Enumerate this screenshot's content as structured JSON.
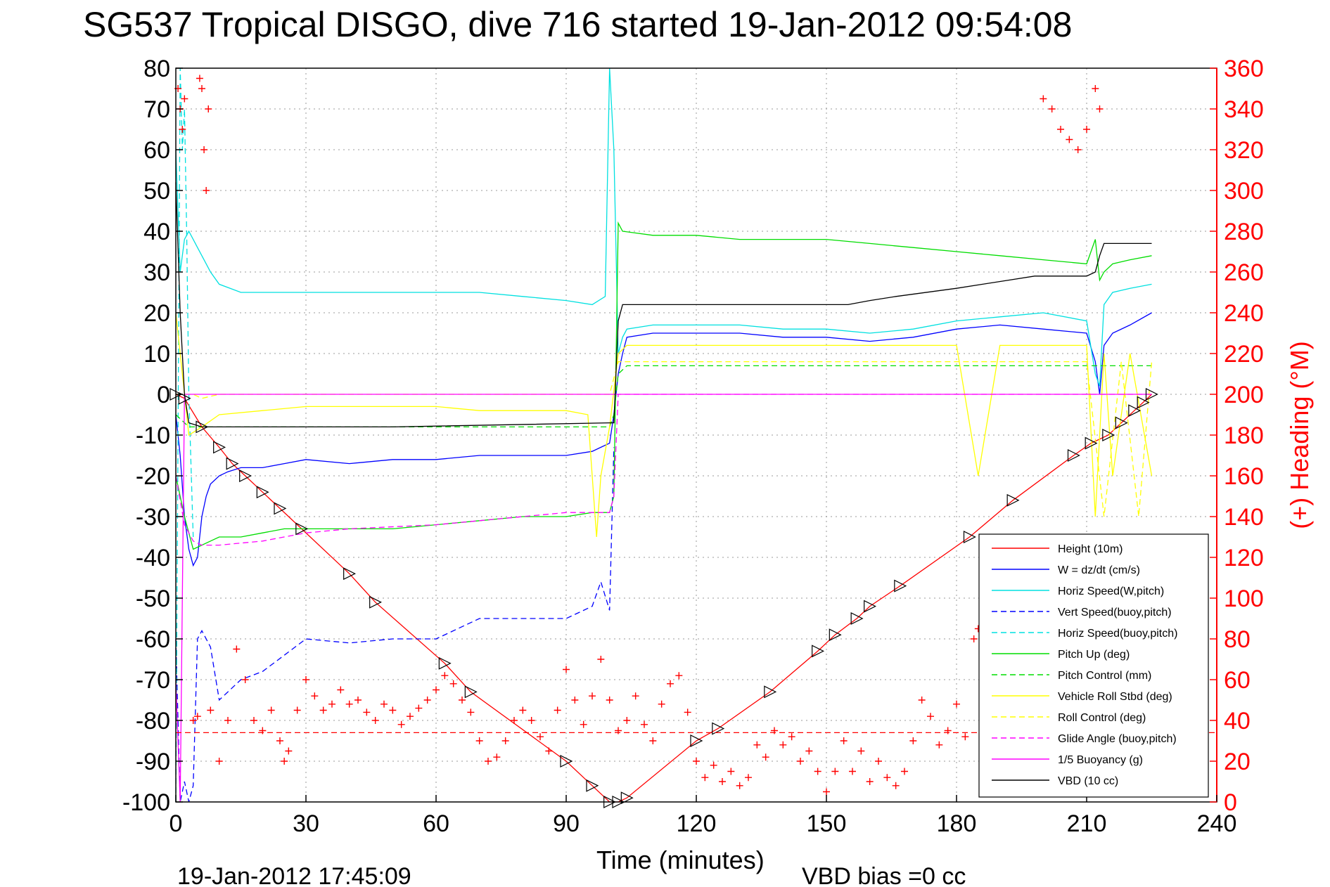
{
  "title": "SG537 Tropical DISGO, dive 716 started 19-Jan-2012 09:54:08",
  "footer": {
    "timestamp": "19-Jan-2012 17:45:09",
    "vbd_bias": "VBD bias =0 cc"
  },
  "chart_data": {
    "type": "line",
    "xlabel": "Time (minutes)",
    "ylabel": "",
    "y2label": "(+) Heading (°M)",
    "xlim": [
      0,
      240
    ],
    "ylim": [
      -100,
      80
    ],
    "y2lim": [
      0,
      360
    ],
    "xticks": [
      0,
      30,
      60,
      90,
      120,
      150,
      180,
      210,
      240
    ],
    "yticks": [
      80,
      70,
      60,
      50,
      40,
      30,
      20,
      10,
      0,
      -10,
      -20,
      -30,
      -40,
      -50,
      -60,
      -70,
      -80,
      -90,
      -100
    ],
    "y2ticks": [
      360,
      340,
      320,
      300,
      280,
      260,
      240,
      220,
      200,
      180,
      160,
      140,
      120,
      100,
      80,
      60,
      40,
      20,
      0
    ],
    "grid": true,
    "legend_position": "bottom-right",
    "series": [
      {
        "name": "Height (10m)",
        "color": "#ff0000",
        "dash": "solid",
        "x": [
          0,
          2,
          6,
          10,
          13,
          16,
          20,
          24,
          29,
          40,
          46,
          62,
          68,
          90,
          96,
          100,
          102,
          104,
          120,
          125,
          137,
          148,
          152,
          157,
          160,
          167,
          183,
          193,
          207,
          211,
          215,
          218,
          221,
          223,
          225
        ],
        "y": [
          0,
          -1,
          -8,
          -13,
          -17,
          -20,
          -24,
          -28,
          -33,
          -44,
          -51,
          -66,
          -73,
          -90,
          -96,
          -100,
          -100,
          -99,
          -85,
          -82,
          -73,
          -63,
          -59,
          -55,
          -52,
          -47,
          -35,
          -26,
          -15,
          -12,
          -10,
          -7,
          -4,
          -2,
          0
        ]
      },
      {
        "name": "W = dz/dt (cm/s)",
        "color": "#0000ff",
        "dash": "solid",
        "x": [
          0,
          1,
          2,
          3,
          4,
          5,
          6,
          7,
          8,
          10,
          12,
          15,
          20,
          25,
          30,
          40,
          50,
          60,
          70,
          80,
          90,
          96,
          98,
          100,
          101,
          102,
          103,
          104,
          110,
          120,
          130,
          140,
          150,
          160,
          170,
          180,
          190,
          200,
          210,
          212,
          213,
          214,
          216,
          220,
          225
        ],
        "y": [
          -5,
          -15,
          -30,
          -38,
          -42,
          -40,
          -30,
          -25,
          -22,
          -20,
          -19,
          -18,
          -18,
          -17,
          -16,
          -17,
          -16,
          -16,
          -15,
          -15,
          -15,
          -14,
          -13,
          -12,
          -5,
          5,
          10,
          14,
          15,
          15,
          15,
          14,
          14,
          13,
          14,
          16,
          17,
          16,
          15,
          8,
          0,
          12,
          15,
          17,
          20
        ]
      },
      {
        "name": "Horiz Speed(W,pitch)",
        "color": "#00e0e0",
        "dash": "solid",
        "x": [
          0,
          1,
          2,
          3,
          4,
          5,
          6,
          8,
          10,
          15,
          20,
          30,
          40,
          50,
          60,
          70,
          80,
          90,
          96,
          99,
          100,
          101,
          102,
          103,
          104,
          110,
          120,
          130,
          140,
          150,
          160,
          170,
          180,
          190,
          200,
          210,
          212,
          213,
          214,
          216,
          220,
          225
        ],
        "y": [
          60,
          30,
          38,
          40,
          38,
          36,
          34,
          30,
          27,
          25,
          25,
          25,
          25,
          25,
          25,
          25,
          24,
          23,
          22,
          24,
          80,
          60,
          10,
          14,
          16,
          17,
          17,
          17,
          16,
          16,
          15,
          16,
          18,
          19,
          20,
          18,
          5,
          2,
          22,
          25,
          26,
          27
        ]
      },
      {
        "name": "Vert Speed(buoy,pitch)",
        "color": "#0000ff",
        "dash": "dashed",
        "x": [
          0,
          1,
          2,
          3,
          4,
          5,
          6,
          8,
          10,
          15,
          20,
          25,
          30,
          40,
          50,
          60,
          70,
          80,
          90,
          96,
          98,
          100,
          101
        ],
        "y": [
          -60,
          -100,
          -95,
          -100,
          -96,
          -60,
          -58,
          -62,
          -75,
          -70,
          -68,
          -64,
          -60,
          -61,
          -60,
          -60,
          -55,
          -55,
          -55,
          -52,
          -46,
          -53,
          -13
        ]
      },
      {
        "name": "Horiz Speed(buoy,pitch)",
        "color": "#00e0e0",
        "dash": "dashed",
        "x": [
          0,
          1,
          1.5,
          2,
          2.5,
          3,
          4
        ],
        "y": [
          -100,
          80,
          60,
          70,
          40,
          0,
          -35
        ]
      },
      {
        "name": "Pitch Up (deg)",
        "color": "#00dd00",
        "dash": "solid",
        "x": [
          0,
          2,
          4,
          6,
          8,
          10,
          15,
          20,
          25,
          30,
          40,
          50,
          60,
          70,
          80,
          90,
          96,
          99,
          100,
          101,
          102,
          103,
          110,
          120,
          130,
          140,
          150,
          160,
          170,
          180,
          190,
          200,
          210,
          212,
          213,
          214,
          216,
          220,
          225
        ],
        "y": [
          -20,
          -30,
          -38,
          -37,
          -36,
          -35,
          -35,
          -34,
          -33,
          -33,
          -33,
          -33,
          -32,
          -31,
          -30,
          -30,
          -29,
          -29,
          -29,
          -25,
          42,
          40,
          39,
          39,
          38,
          38,
          38,
          37,
          36,
          35,
          34,
          33,
          32,
          38,
          28,
          30,
          32,
          33,
          34
        ]
      },
      {
        "name": "Pitch Control (mm)",
        "color": "#00dd00",
        "dash": "dashed",
        "x": [
          0,
          3,
          6,
          30,
          60,
          80,
          90,
          100,
          101,
          102,
          104,
          120,
          160,
          200,
          225
        ],
        "y": [
          -5,
          -8,
          -8,
          -8,
          -8,
          -8,
          -8,
          -8,
          -5,
          5,
          7,
          7,
          7,
          7,
          7
        ]
      },
      {
        "name": "Vehicle Roll Stbd (deg)",
        "color": "#ffff00",
        "dash": "solid",
        "x": [
          0,
          3,
          6,
          10,
          20,
          30,
          40,
          50,
          60,
          70,
          80,
          90,
          95,
          97,
          98,
          100,
          102,
          104,
          120,
          140,
          160,
          180,
          185,
          190,
          200,
          210,
          212,
          214,
          216,
          220,
          225
        ],
        "y": [
          20,
          -10,
          -8,
          -5,
          -4,
          -3,
          -3,
          -3,
          -3,
          -4,
          -4,
          -4,
          -5,
          -35,
          -20,
          -8,
          10,
          12,
          12,
          12,
          12,
          12,
          -20,
          12,
          12,
          12,
          -30,
          10,
          -20,
          10,
          -20
        ]
      },
      {
        "name": "Roll Control (deg)",
        "color": "#ffff00",
        "dash": "dashed",
        "x": [
          0,
          4,
          6,
          10,
          30,
          60,
          90,
          100,
          102,
          104,
          120,
          140,
          160,
          180,
          200,
          210,
          214,
          218,
          222,
          225
        ],
        "y": [
          0,
          0,
          -1,
          0,
          0,
          0,
          0,
          0,
          8,
          8,
          8,
          8,
          8,
          8,
          8,
          8,
          -30,
          8,
          -30,
          8
        ]
      },
      {
        "name": "Glide Angle (buoy,pitch)",
        "color": "#ff00ff",
        "dash": "dashed",
        "x": [
          0,
          2,
          4,
          6,
          10,
          20,
          30,
          40,
          60,
          80,
          90,
          96,
          100,
          101,
          102,
          225
        ],
        "y": [
          -20,
          -32,
          -36,
          -37,
          -37,
          -36,
          -34,
          -33,
          -32,
          -30,
          -29,
          -29,
          -29,
          -25,
          0,
          0
        ]
      },
      {
        "name": "1/5 Buoyancy (g)",
        "color": "#ff00ff",
        "dash": "solid",
        "x": [
          0,
          1,
          2,
          102,
          225
        ],
        "y": [
          -70,
          -100,
          0,
          0,
          0
        ]
      },
      {
        "name": "VBD (10 cc)",
        "color": "#000000",
        "dash": "solid",
        "x": [
          0,
          1,
          2,
          3,
          6,
          50,
          100,
          101,
          102,
          103,
          150,
          155,
          160,
          166,
          180,
          186,
          192,
          198,
          204,
          210,
          212,
          213,
          214,
          225
        ],
        "y": [
          52,
          20,
          0,
          -7,
          -8,
          -8,
          -7,
          -7,
          18,
          22,
          22,
          22,
          23,
          24,
          26,
          27,
          28,
          29,
          29,
          29,
          30,
          34,
          37,
          37
        ]
      }
    ],
    "heading_series": {
      "name": "(+) Heading (°M)",
      "axis": "right",
      "color": "#ff0000",
      "marker": "+",
      "x": [
        0.5,
        1,
        1.5,
        2,
        4,
        5,
        5.5,
        6,
        6.5,
        7,
        7.5,
        8,
        10,
        12,
        14,
        16,
        18,
        20,
        22,
        24,
        25,
        26,
        28,
        30,
        32,
        34,
        36,
        38,
        40,
        42,
        44,
        46,
        48,
        50,
        52,
        54,
        56,
        58,
        60,
        62,
        64,
        66,
        68,
        70,
        72,
        74,
        76,
        78,
        80,
        82,
        84,
        86,
        88,
        90,
        92,
        94,
        96,
        98,
        100,
        102,
        104,
        106,
        108,
        110,
        112,
        114,
        116,
        118,
        120,
        122,
        124,
        126,
        128,
        130,
        132,
        134,
        136,
        138,
        140,
        142,
        144,
        146,
        148,
        150,
        152,
        154,
        156,
        158,
        160,
        162,
        164,
        166,
        168,
        170,
        172,
        174,
        176,
        178,
        180,
        182,
        184,
        185,
        186,
        200,
        202,
        204,
        206,
        208,
        210,
        212,
        213
      ],
      "y": [
        350,
        340,
        330,
        345,
        40,
        42,
        355,
        350,
        320,
        300,
        340,
        45,
        20,
        40,
        75,
        60,
        40,
        35,
        45,
        30,
        20,
        25,
        45,
        60,
        52,
        45,
        48,
        55,
        48,
        50,
        44,
        40,
        48,
        45,
        38,
        42,
        46,
        50,
        55,
        62,
        58,
        50,
        44,
        30,
        20,
        22,
        30,
        40,
        45,
        40,
        32,
        25,
        45,
        65,
        50,
        38,
        52,
        70,
        50,
        35,
        40,
        52,
        38,
        30,
        48,
        58,
        62,
        44,
        20,
        12,
        18,
        10,
        15,
        8,
        12,
        28,
        22,
        35,
        28,
        32,
        20,
        25,
        15,
        5,
        15,
        30,
        15,
        25,
        10,
        20,
        12,
        8,
        15,
        30,
        50,
        42,
        28,
        35,
        48,
        32,
        80,
        85,
        70,
        345,
        340,
        330,
        325,
        320,
        330,
        350,
        340
      ]
    },
    "heading_reference": {
      "color": "#ff0000",
      "dash": "dashed",
      "y2": 34
    }
  }
}
